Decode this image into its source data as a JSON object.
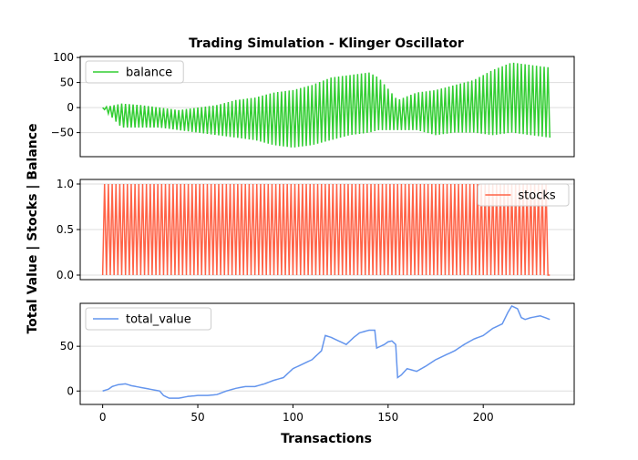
{
  "chart_data": {
    "type": "line",
    "title": "Trading Simulation - Klinger Oscillator",
    "xlabel": "Transactions",
    "ylabel": "Total Value | Stocks | Balance",
    "xlim": [
      -11.8,
      247.8
    ],
    "x_ticks": [
      0,
      50,
      100,
      150,
      200
    ],
    "x_tick_labels": [
      "0",
      "50",
      "100",
      "150",
      "200"
    ],
    "n_transactions": 236,
    "grid": "horizontal",
    "panels": [
      {
        "series_name": "balance",
        "color": "#32cd32",
        "legend": "upper-left",
        "ylim": [
          -98,
          102
        ],
        "y_ticks": [
          -50,
          0,
          50,
          100
        ],
        "y_tick_labels": [
          "−50",
          "0",
          "50",
          "100"
        ],
        "x": [
          0,
          10,
          20,
          30,
          40,
          50,
          60,
          70,
          80,
          90,
          100,
          110,
          120,
          130,
          140,
          145,
          155,
          165,
          175,
          185,
          195,
          205,
          215,
          225,
          235
        ],
        "upper": [
          0,
          8,
          5,
          0,
          -5,
          0,
          5,
          15,
          20,
          30,
          35,
          45,
          60,
          65,
          70,
          60,
          15,
          30,
          35,
          45,
          55,
          75,
          90,
          85,
          80
        ],
        "lower": [
          0,
          -40,
          -40,
          -40,
          -45,
          -50,
          -55,
          -60,
          -65,
          -75,
          -80,
          -75,
          -65,
          -55,
          -50,
          -45,
          -45,
          -45,
          -55,
          -50,
          -50,
          -55,
          -50,
          -55,
          -60
        ]
      },
      {
        "series_name": "stocks",
        "color": "#ff6347",
        "legend": "upper-right",
        "ylim": [
          -0.05,
          1.05
        ],
        "y_ticks": [
          0,
          0.5,
          1
        ],
        "y_tick_labels": [
          "0.0",
          "0.5",
          "1.0"
        ],
        "values_min": 0,
        "values_max": 1
      },
      {
        "series_name": "total_value",
        "color": "#6495ed",
        "legend": "upper-left",
        "ylim": [
          -15,
          98
        ],
        "y_ticks": [
          0,
          50
        ],
        "y_tick_labels": [
          "0",
          "50"
        ],
        "x": [
          0,
          3,
          5,
          8,
          12,
          15,
          20,
          25,
          30,
          32,
          35,
          40,
          45,
          50,
          55,
          60,
          65,
          70,
          75,
          80,
          85,
          90,
          95,
          100,
          105,
          110,
          115,
          117,
          120,
          125,
          128,
          132,
          135,
          140,
          143,
          144,
          148,
          150,
          152,
          154,
          155,
          157,
          160,
          165,
          170,
          175,
          180,
          185,
          190,
          195,
          200,
          205,
          210,
          213,
          215,
          218,
          220,
          222,
          225,
          230,
          235
        ],
        "values": [
          0,
          2,
          5,
          7,
          8,
          6,
          4,
          2,
          0,
          -5,
          -8,
          -8,
          -6,
          -5,
          -5,
          -4,
          0,
          3,
          5,
          5,
          8,
          12,
          15,
          25,
          30,
          35,
          45,
          62,
          60,
          55,
          52,
          60,
          65,
          68,
          68,
          48,
          52,
          55,
          56,
          52,
          15,
          18,
          25,
          22,
          28,
          35,
          40,
          45,
          52,
          58,
          62,
          70,
          75,
          88,
          95,
          92,
          82,
          80,
          82,
          84,
          80
        ]
      }
    ]
  }
}
